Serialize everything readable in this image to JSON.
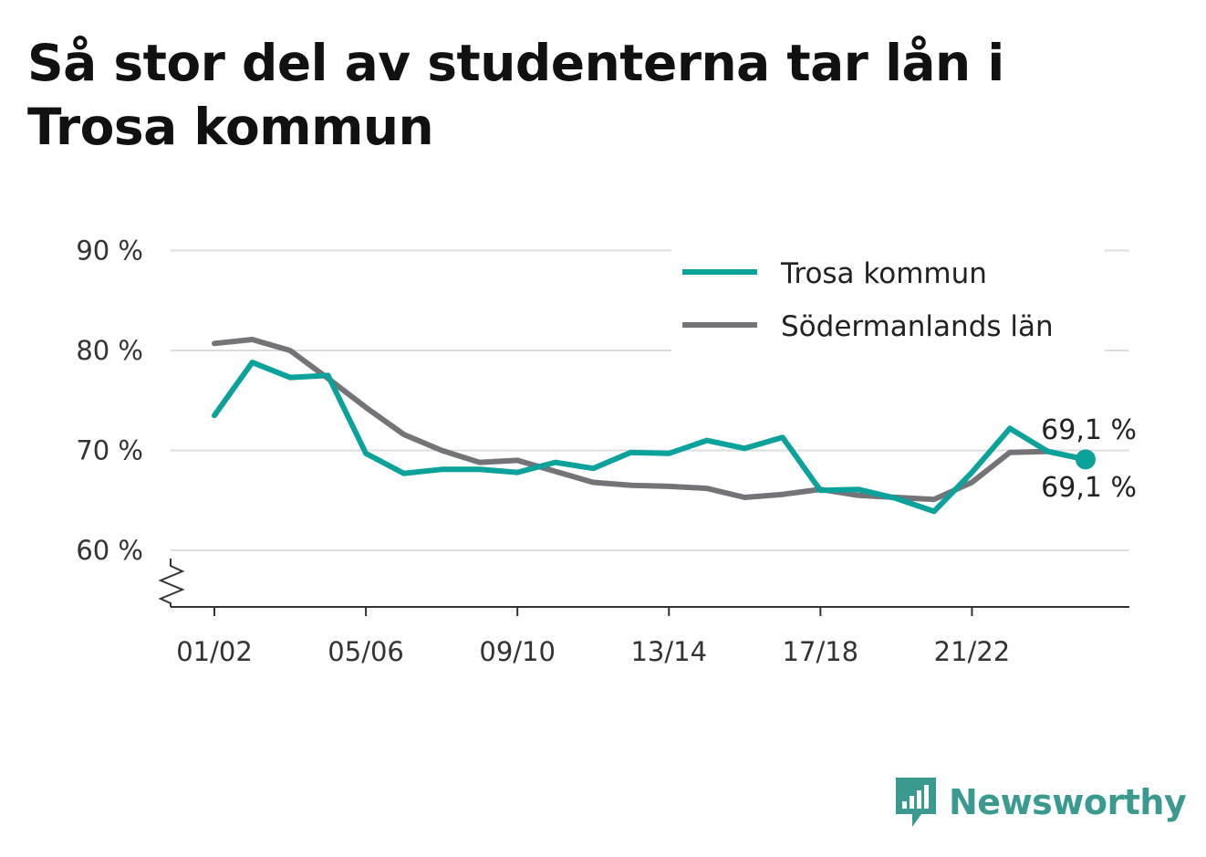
{
  "title": "Så stor del av studenterna tar lån i Trosa kommun",
  "brand": {
    "name": "Newsworthy",
    "icon": "bar-chart-speech-bubble-icon"
  },
  "colors": {
    "trosa": "#0aa29a",
    "lan": "#747377",
    "grid": "#dddddd",
    "axis": "#333333",
    "brand": "#3a9a90"
  },
  "chart_data": {
    "type": "line",
    "x": [
      "01/02",
      "02/03",
      "03/04",
      "04/05",
      "05/06",
      "06/07",
      "07/08",
      "08/09",
      "09/10",
      "10/11",
      "11/12",
      "12/13",
      "13/14",
      "14/15",
      "15/16",
      "16/17",
      "17/18",
      "18/19",
      "19/20",
      "20/21",
      "21/22",
      "22/23",
      "23/24",
      "24/25"
    ],
    "xticks": [
      "01/02",
      "05/06",
      "09/10",
      "13/14",
      "17/18",
      "21/22"
    ],
    "series": [
      {
        "name": "Trosa kommun",
        "color": "#0aa29a",
        "values": [
          73.5,
          78.8,
          77.3,
          77.5,
          69.7,
          67.7,
          68.1,
          68.1,
          67.8,
          68.8,
          68.2,
          69.8,
          69.7,
          71.0,
          70.2,
          71.3,
          66.0,
          66.1,
          65.2,
          63.9,
          67.8,
          72.2,
          69.9,
          69.1
        ]
      },
      {
        "name": "Södermanlands län",
        "color": "#747377",
        "values": [
          80.7,
          81.1,
          80.0,
          77.2,
          74.3,
          71.6,
          70.0,
          68.8,
          69.0,
          67.9,
          66.8,
          66.5,
          66.4,
          66.2,
          65.3,
          65.6,
          66.1,
          65.5,
          65.3,
          65.1,
          66.8,
          69.8,
          69.9,
          69.1
        ]
      }
    ],
    "end_labels": [
      "69,1 %",
      "69,1 %"
    ],
    "yticks": [
      {
        "value": 60,
        "label": "60 %"
      },
      {
        "value": 70,
        "label": "70 %"
      },
      {
        "value": 80,
        "label": "80 %"
      },
      {
        "value": 90,
        "label": "90 %"
      }
    ],
    "ylim": [
      54.5,
      90
    ],
    "y_axis_break": true,
    "grid": true,
    "legend_position": "top-right"
  }
}
